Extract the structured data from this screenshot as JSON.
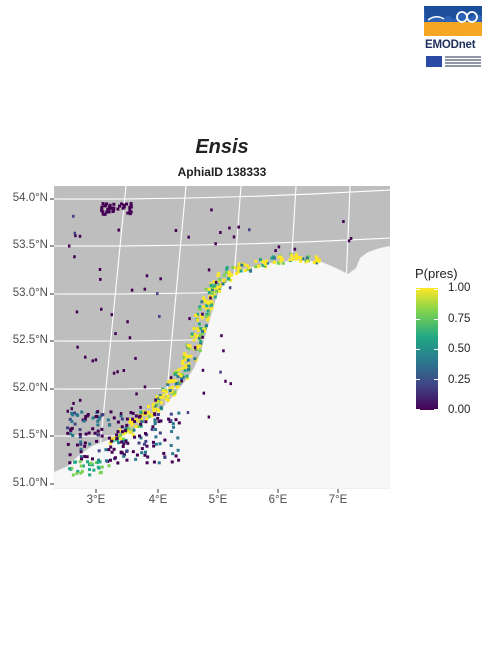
{
  "logo": {
    "text": "EMODnet"
  },
  "map": {
    "title": "Ensis",
    "subtitle": "AphiaID 138333",
    "y_ticks": [
      "54.0°N",
      "53.5°N",
      "53.0°N",
      "52.5°N",
      "52.0°N",
      "51.5°N",
      "51.0°N"
    ],
    "x_ticks": [
      "3°E",
      "4°E",
      "5°E",
      "6°E",
      "7°E"
    ],
    "colors": {
      "sea": "#bebebe",
      "land": "#f7f7f7",
      "grid": "#ffffff"
    }
  },
  "legend": {
    "title": "P(pres)",
    "labels": [
      "1.00",
      "0.75",
      "0.50",
      "0.25",
      "0.00"
    ],
    "colors": [
      "#440154",
      "#414487",
      "#2a788e",
      "#22a884",
      "#7ad151",
      "#fde725"
    ]
  }
}
